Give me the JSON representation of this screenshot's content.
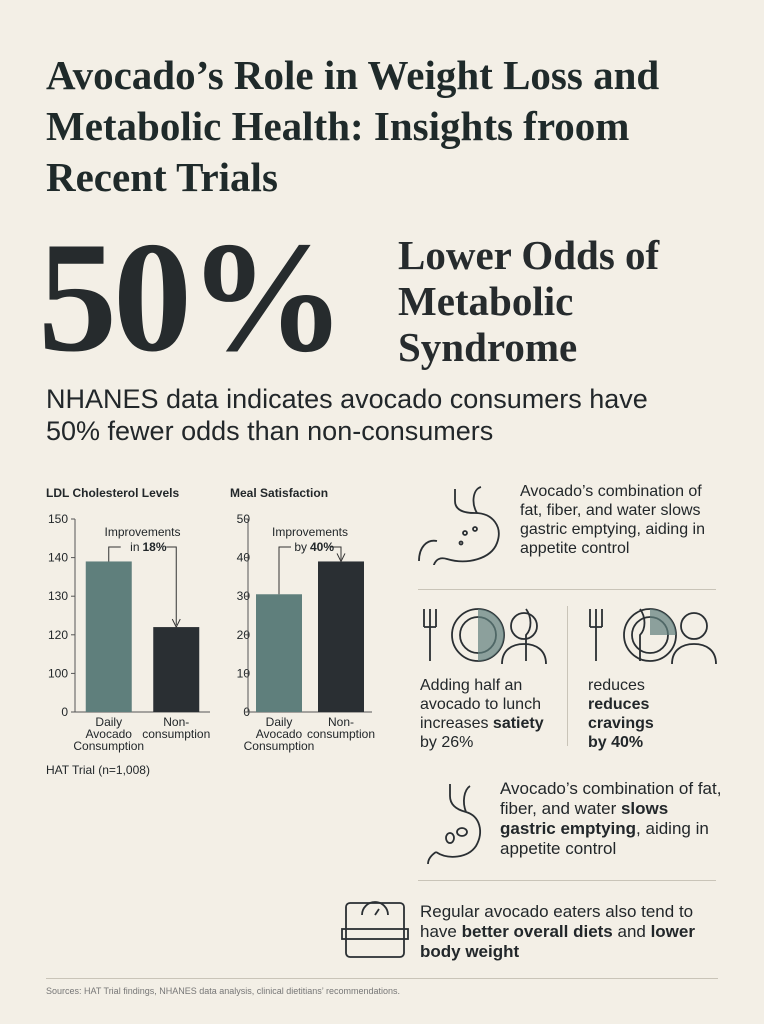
{
  "title": "Avocado’s Role in Weight Loss and Metabolic Health: Insights froom Recent Trials",
  "stat": {
    "value": "50%",
    "label": "Lower Odds of Metabolic Syndrome"
  },
  "summary": "NHANES data indicates avocado consumers have 50% fewer odds than non-consumers",
  "chart_data": [
    {
      "type": "bar",
      "title": "LDL Cholesterol Levels",
      "categories": [
        "Daily Avocado Consumption",
        "Non-consumption"
      ],
      "values": [
        139,
        122
      ],
      "colors": [
        "#5f7f7c",
        "#2a2f33"
      ],
      "ylim": [
        0,
        150
      ],
      "yticks": [
        0,
        100,
        120,
        130,
        140,
        150
      ],
      "annotation": [
        "Improvements",
        "in",
        "18%"
      ],
      "note": "HAT Trial (n=1,008)"
    },
    {
      "type": "bar",
      "title": "Meal Satisfaction",
      "categories": [
        "Daily Avocado Consumption",
        "Non-consumption"
      ],
      "values": [
        30.5,
        39
      ],
      "colors": [
        "#5f7f7c",
        "#2a2f33"
      ],
      "ylim": [
        0,
        50
      ],
      "yticks": [
        0,
        10,
        20,
        30,
        40,
        50
      ],
      "annotation": [
        "Improvements",
        "by",
        "40%"
      ]
    }
  ],
  "panels": [
    [
      {
        "text": "Avocado’s combination of fat, fiber, and water slows gastric emptying, aiding in appetite control",
        "bold": false
      }
    ],
    [
      {
        "text": "Adding half an avocado to lunch increases ",
        "bold": false
      },
      {
        "text": "satiety",
        "bold": true
      },
      {
        "text": " by 26%",
        "bold": false
      }
    ],
    [
      {
        "text": "reduces ",
        "bold": false
      },
      {
        "text": "reduces cravings",
        "bold": true
      },
      {
        "text": " by 40%",
        "bold": true
      }
    ],
    [
      {
        "text": "Avocado’s combination of fat, fiber, and water ",
        "bold": false
      },
      {
        "text": "slows gastric emptying",
        "bold": true
      },
      {
        "text": ", aiding in appetite control",
        "bold": false
      }
    ],
    [
      {
        "text": "Regular avocado eaters also tend to have ",
        "bold": false
      },
      {
        "text": "better overall diets",
        "bold": true
      },
      {
        "text": " and ",
        "bold": false
      },
      {
        "text": "lower body weight",
        "bold": true
      }
    ]
  ],
  "sources": "Sources: HAT Trial findings, NHANES data analysis, clinical dietitians’ recommendations."
}
